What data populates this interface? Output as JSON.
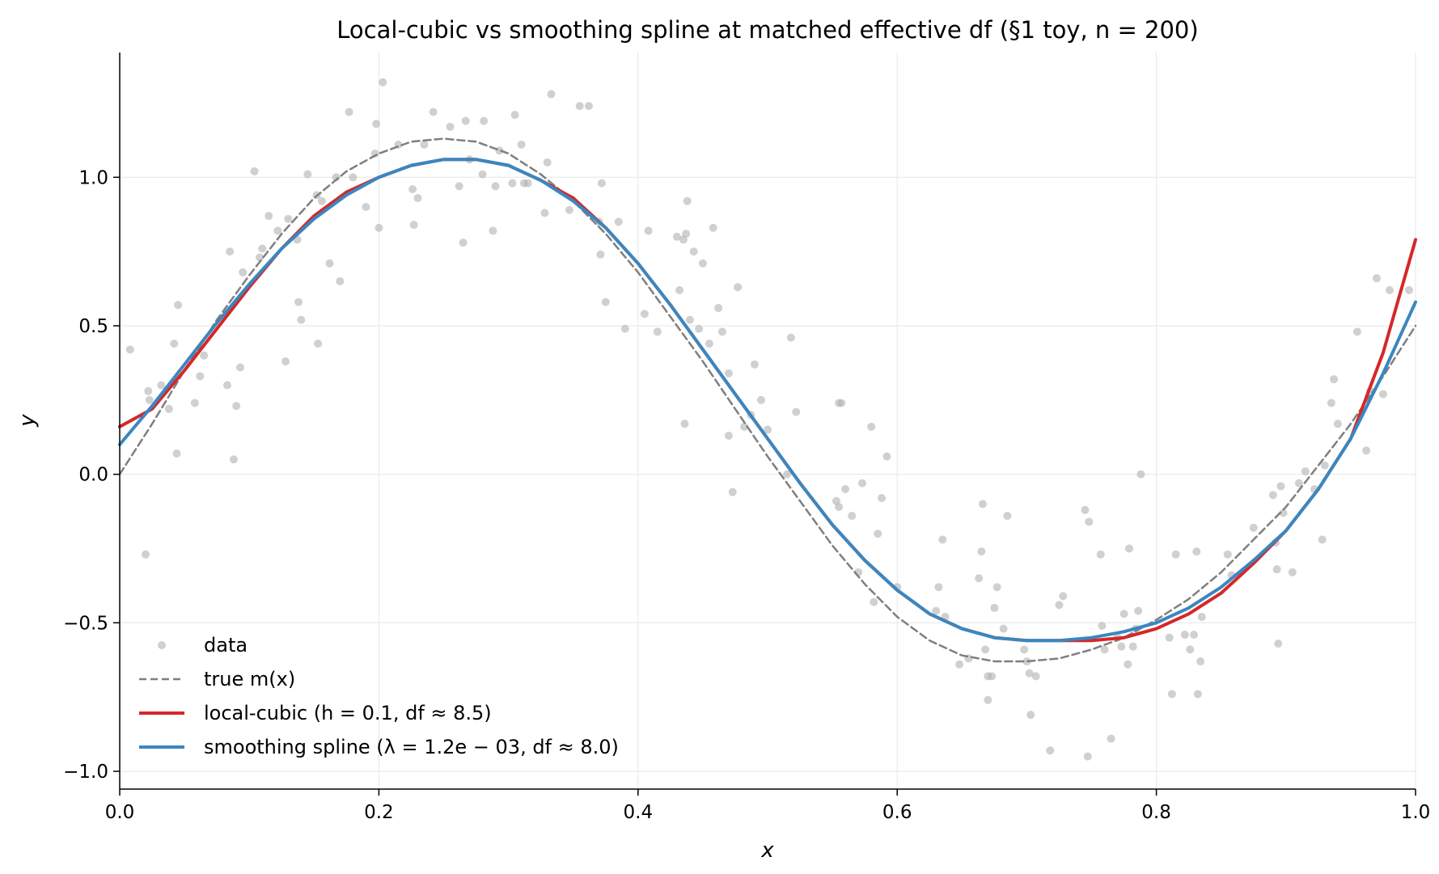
{
  "chart_data": {
    "type": "scatter",
    "title": "Local-cubic vs smoothing spline at matched effective df  (§1 toy, n = 200)",
    "xlabel": "x",
    "ylabel": "y",
    "xlim": [
      0.0,
      1.0
    ],
    "ylim": [
      -1.06,
      1.42
    ],
    "xticks": [
      "0.0",
      "0.2",
      "0.4",
      "0.6",
      "0.8",
      "1.0"
    ],
    "xtick_values": [
      0.0,
      0.2,
      0.4,
      0.6,
      0.8,
      1.0
    ],
    "yticks": [
      "−1.0",
      "−0.5",
      "0.0",
      "0.5",
      "1.0"
    ],
    "ytick_values": [
      -1.0,
      -0.5,
      0.0,
      0.5,
      1.0
    ],
    "grid": true,
    "legend_position": "lower-left",
    "series": [
      {
        "name": "data",
        "kind": "scatter",
        "color": "#b0b0b0",
        "points": [
          [
            0.008,
            0.42
          ],
          [
            0.02,
            -0.27
          ],
          [
            0.022,
            0.28
          ],
          [
            0.023,
            0.25
          ],
          [
            0.032,
            0.3
          ],
          [
            0.038,
            0.22
          ],
          [
            0.042,
            0.44
          ],
          [
            0.044,
            0.07
          ],
          [
            0.045,
            0.57
          ],
          [
            0.058,
            0.24
          ],
          [
            0.062,
            0.33
          ],
          [
            0.065,
            0.4
          ],
          [
            0.083,
            0.3
          ],
          [
            0.085,
            0.75
          ],
          [
            0.088,
            0.05
          ],
          [
            0.09,
            0.23
          ],
          [
            0.093,
            0.36
          ],
          [
            0.095,
            0.68
          ],
          [
            0.104,
            1.02
          ],
          [
            0.108,
            0.73
          ],
          [
            0.11,
            0.76
          ],
          [
            0.115,
            0.87
          ],
          [
            0.122,
            0.82
          ],
          [
            0.128,
            0.38
          ],
          [
            0.13,
            0.86
          ],
          [
            0.137,
            0.79
          ],
          [
            0.138,
            0.58
          ],
          [
            0.14,
            0.52
          ],
          [
            0.145,
            1.01
          ],
          [
            0.152,
            0.94
          ],
          [
            0.153,
            0.44
          ],
          [
            0.156,
            0.92
          ],
          [
            0.162,
            0.71
          ],
          [
            0.167,
            1.0
          ],
          [
            0.17,
            0.65
          ],
          [
            0.177,
            1.22
          ],
          [
            0.18,
            1.0
          ],
          [
            0.19,
            0.9
          ],
          [
            0.197,
            1.08
          ],
          [
            0.198,
            1.18
          ],
          [
            0.2,
            0.83
          ],
          [
            0.203,
            1.32
          ],
          [
            0.215,
            1.11
          ],
          [
            0.226,
            0.96
          ],
          [
            0.227,
            0.84
          ],
          [
            0.23,
            0.93
          ],
          [
            0.235,
            1.11
          ],
          [
            0.242,
            1.22
          ],
          [
            0.255,
            1.17
          ],
          [
            0.262,
            0.97
          ],
          [
            0.265,
            0.78
          ],
          [
            0.267,
            1.19
          ],
          [
            0.27,
            1.06
          ],
          [
            0.28,
            1.01
          ],
          [
            0.281,
            1.19
          ],
          [
            0.288,
            0.82
          ],
          [
            0.29,
            0.97
          ],
          [
            0.293,
            1.09
          ],
          [
            0.303,
            0.98
          ],
          [
            0.305,
            1.21
          ],
          [
            0.31,
            1.11
          ],
          [
            0.312,
            0.98
          ],
          [
            0.315,
            0.98
          ],
          [
            0.33,
            1.05
          ],
          [
            0.328,
            0.88
          ],
          [
            0.333,
            1.28
          ],
          [
            0.347,
            0.89
          ],
          [
            0.355,
            1.24
          ],
          [
            0.362,
            1.24
          ],
          [
            0.37,
            0.85
          ],
          [
            0.371,
            0.74
          ],
          [
            0.372,
            0.98
          ],
          [
            0.375,
            0.58
          ],
          [
            0.385,
            0.85
          ],
          [
            0.39,
            0.49
          ],
          [
            0.405,
            0.54
          ],
          [
            0.408,
            0.82
          ],
          [
            0.415,
            0.48
          ],
          [
            0.43,
            0.8
          ],
          [
            0.432,
            0.62
          ],
          [
            0.435,
            0.79
          ],
          [
            0.437,
            0.81
          ],
          [
            0.436,
            0.17
          ],
          [
            0.438,
            0.92
          ],
          [
            0.44,
            0.52
          ],
          [
            0.443,
            0.75
          ],
          [
            0.447,
            0.49
          ],
          [
            0.45,
            0.71
          ],
          [
            0.455,
            0.44
          ],
          [
            0.458,
            0.83
          ],
          [
            0.462,
            0.56
          ],
          [
            0.465,
            0.48
          ],
          [
            0.47,
            0.34
          ],
          [
            0.47,
            0.13
          ],
          [
            0.473,
            -0.06
          ],
          [
            0.477,
            0.63
          ],
          [
            0.482,
            0.16
          ],
          [
            0.487,
            0.2
          ],
          [
            0.49,
            0.37
          ],
          [
            0.495,
            0.25
          ],
          [
            0.5,
            0.15
          ],
          [
            0.515,
            0.0
          ],
          [
            0.518,
            0.46
          ],
          [
            0.522,
            0.21
          ],
          [
            0.555,
            0.24
          ],
          [
            0.557,
            0.24
          ],
          [
            0.553,
            -0.09
          ],
          [
            0.555,
            -0.11
          ],
          [
            0.56,
            -0.05
          ],
          [
            0.565,
            -0.14
          ],
          [
            0.57,
            -0.33
          ],
          [
            0.573,
            -0.03
          ],
          [
            0.58,
            0.16
          ],
          [
            0.582,
            -0.43
          ],
          [
            0.585,
            -0.2
          ],
          [
            0.588,
            -0.08
          ],
          [
            0.592,
            0.06
          ],
          [
            0.6,
            -0.38
          ],
          [
            0.63,
            -0.46
          ],
          [
            0.632,
            -0.38
          ],
          [
            0.635,
            -0.22
          ],
          [
            0.637,
            -0.48
          ],
          [
            0.648,
            -0.64
          ],
          [
            0.655,
            -0.62
          ],
          [
            0.663,
            -0.35
          ],
          [
            0.665,
            -0.26
          ],
          [
            0.666,
            -0.1
          ],
          [
            0.668,
            -0.59
          ],
          [
            0.67,
            -0.68
          ],
          [
            0.67,
            -0.76
          ],
          [
            0.673,
            -0.68
          ],
          [
            0.675,
            -0.45
          ],
          [
            0.677,
            -0.38
          ],
          [
            0.682,
            -0.52
          ],
          [
            0.685,
            -0.14
          ],
          [
            0.698,
            -0.59
          ],
          [
            0.7,
            -0.63
          ],
          [
            0.702,
            -0.67
          ],
          [
            0.703,
            -0.81
          ],
          [
            0.707,
            -0.68
          ],
          [
            0.718,
            -0.93
          ],
          [
            0.725,
            -0.44
          ],
          [
            0.728,
            -0.41
          ],
          [
            0.745,
            -0.12
          ],
          [
            0.747,
            -0.95
          ],
          [
            0.748,
            -0.16
          ],
          [
            0.757,
            -0.27
          ],
          [
            0.758,
            -0.51
          ],
          [
            0.76,
            -0.59
          ],
          [
            0.765,
            -0.89
          ],
          [
            0.77,
            -0.55
          ],
          [
            0.773,
            -0.58
          ],
          [
            0.775,
            -0.47
          ],
          [
            0.778,
            -0.64
          ],
          [
            0.779,
            -0.25
          ],
          [
            0.782,
            -0.58
          ],
          [
            0.784,
            -0.52
          ],
          [
            0.786,
            -0.46
          ],
          [
            0.788,
            0.0
          ],
          [
            0.81,
            -0.55
          ],
          [
            0.812,
            -0.74
          ],
          [
            0.815,
            -0.27
          ],
          [
            0.822,
            -0.54
          ],
          [
            0.826,
            -0.59
          ],
          [
            0.829,
            -0.54
          ],
          [
            0.831,
            -0.26
          ],
          [
            0.832,
            -0.74
          ],
          [
            0.834,
            -0.63
          ],
          [
            0.835,
            -0.48
          ],
          [
            0.855,
            -0.27
          ],
          [
            0.858,
            -0.34
          ],
          [
            0.875,
            -0.18
          ],
          [
            0.89,
            -0.07
          ],
          [
            0.892,
            -0.23
          ],
          [
            0.893,
            -0.32
          ],
          [
            0.894,
            -0.57
          ],
          [
            0.896,
            -0.04
          ],
          [
            0.898,
            -0.13
          ],
          [
            0.905,
            -0.33
          ],
          [
            0.91,
            -0.03
          ],
          [
            0.915,
            0.01
          ],
          [
            0.922,
            -0.05
          ],
          [
            0.928,
            -0.22
          ],
          [
            0.93,
            0.03
          ],
          [
            0.935,
            0.24
          ],
          [
            0.937,
            0.32
          ],
          [
            0.94,
            0.17
          ],
          [
            0.955,
            0.48
          ],
          [
            0.962,
            0.08
          ],
          [
            0.965,
            0.28
          ],
          [
            0.97,
            0.66
          ],
          [
            0.975,
            0.27
          ],
          [
            0.98,
            0.62
          ],
          [
            0.995,
            0.62
          ]
        ]
      },
      {
        "name": "true m(x)",
        "kind": "dashed-line",
        "color": "#7f7f7f",
        "x": [
          0.0,
          0.025,
          0.05,
          0.075,
          0.1,
          0.125,
          0.15,
          0.175,
          0.2,
          0.225,
          0.25,
          0.275,
          0.3,
          0.325,
          0.35,
          0.375,
          0.4,
          0.425,
          0.45,
          0.475,
          0.5,
          0.525,
          0.55,
          0.575,
          0.6,
          0.625,
          0.65,
          0.675,
          0.7,
          0.725,
          0.75,
          0.775,
          0.8,
          0.825,
          0.85,
          0.875,
          0.9,
          0.925,
          0.95,
          0.975,
          1.0
        ],
        "y": [
          0.0,
          0.17,
          0.35,
          0.52,
          0.67,
          0.81,
          0.93,
          1.02,
          1.08,
          1.12,
          1.13,
          1.12,
          1.08,
          1.01,
          0.92,
          0.81,
          0.68,
          0.53,
          0.38,
          0.22,
          0.06,
          -0.09,
          -0.24,
          -0.37,
          -0.48,
          -0.56,
          -0.61,
          -0.63,
          -0.63,
          -0.62,
          -0.59,
          -0.55,
          -0.49,
          -0.42,
          -0.33,
          -0.22,
          -0.11,
          0.03,
          0.17,
          0.33,
          0.5
        ]
      },
      {
        "name": "local-cubic (h = 0.1, df ≈ 8.5)",
        "kind": "line",
        "color": "#d62728",
        "x": [
          0.0,
          0.025,
          0.05,
          0.075,
          0.1,
          0.125,
          0.15,
          0.175,
          0.2,
          0.225,
          0.25,
          0.275,
          0.3,
          0.325,
          0.35,
          0.375,
          0.4,
          0.425,
          0.45,
          0.475,
          0.5,
          0.525,
          0.55,
          0.575,
          0.6,
          0.625,
          0.65,
          0.675,
          0.7,
          0.725,
          0.75,
          0.775,
          0.8,
          0.825,
          0.85,
          0.875,
          0.9,
          0.925,
          0.95,
          0.975,
          1.0
        ],
        "y": [
          0.16,
          0.22,
          0.35,
          0.49,
          0.63,
          0.76,
          0.87,
          0.95,
          1.0,
          1.04,
          1.06,
          1.06,
          1.04,
          0.99,
          0.93,
          0.83,
          0.71,
          0.57,
          0.42,
          0.27,
          0.12,
          -0.03,
          -0.17,
          -0.29,
          -0.39,
          -0.47,
          -0.52,
          -0.55,
          -0.56,
          -0.56,
          -0.56,
          -0.55,
          -0.52,
          -0.47,
          -0.4,
          -0.3,
          -0.19,
          -0.05,
          0.12,
          0.41,
          0.79
        ]
      },
      {
        "name": "smoothing spline (λ = 1.2e − 03, df ≈ 8.0)",
        "kind": "line",
        "color": "#3a87c0",
        "x": [
          0.0,
          0.025,
          0.05,
          0.075,
          0.1,
          0.125,
          0.15,
          0.175,
          0.2,
          0.225,
          0.25,
          0.275,
          0.3,
          0.325,
          0.35,
          0.375,
          0.4,
          0.425,
          0.45,
          0.475,
          0.5,
          0.525,
          0.55,
          0.575,
          0.6,
          0.625,
          0.65,
          0.675,
          0.7,
          0.725,
          0.75,
          0.775,
          0.8,
          0.825,
          0.85,
          0.875,
          0.9,
          0.925,
          0.95,
          0.975,
          1.0
        ],
        "y": [
          0.1,
          0.23,
          0.37,
          0.51,
          0.64,
          0.76,
          0.86,
          0.94,
          1.0,
          1.04,
          1.06,
          1.06,
          1.04,
          0.99,
          0.92,
          0.83,
          0.71,
          0.57,
          0.42,
          0.27,
          0.12,
          -0.03,
          -0.17,
          -0.29,
          -0.39,
          -0.47,
          -0.52,
          -0.55,
          -0.56,
          -0.56,
          -0.55,
          -0.53,
          -0.5,
          -0.45,
          -0.38,
          -0.29,
          -0.19,
          -0.05,
          0.12,
          0.34,
          0.58
        ]
      }
    ]
  }
}
